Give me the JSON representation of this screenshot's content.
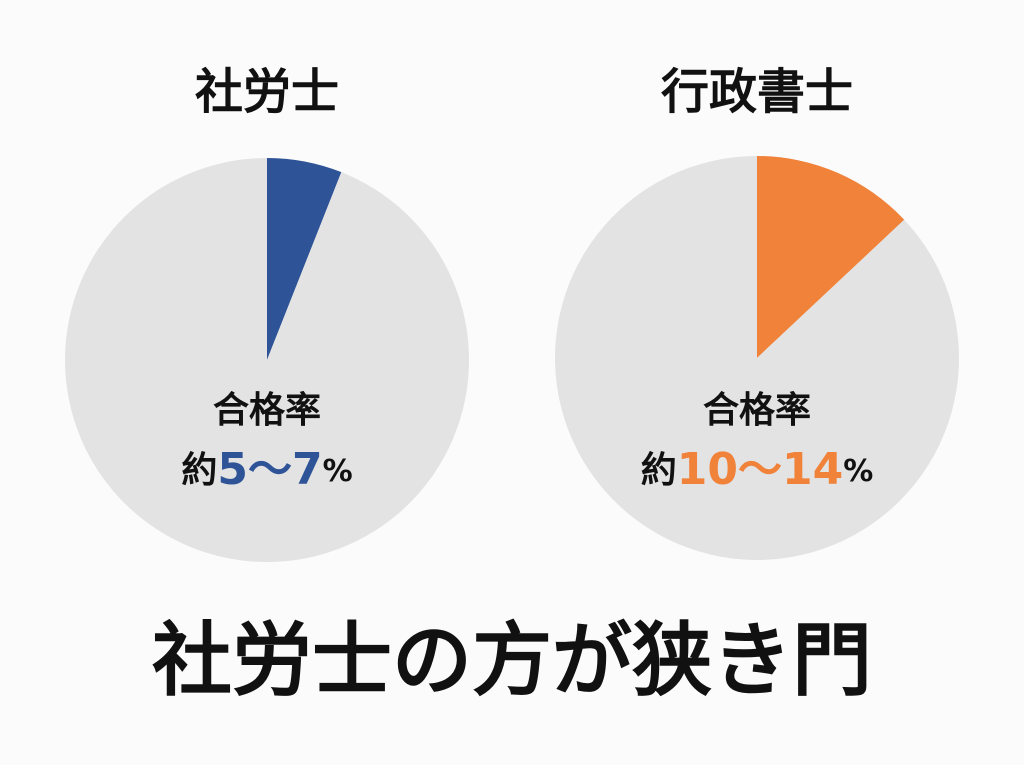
{
  "chart_data": [
    {
      "type": "pie",
      "title": "社労士",
      "values": [
        6,
        94
      ],
      "colors": [
        "#2e5497",
        "#e3e3e3"
      ],
      "label": {
        "heading": "合格率",
        "prefix": "約",
        "range": "5〜7",
        "suffix": "%"
      }
    },
    {
      "type": "pie",
      "title": "行政書士",
      "values": [
        13,
        87
      ],
      "colors": [
        "#f0823a",
        "#e3e3e3"
      ],
      "label": {
        "heading": "合格率",
        "prefix": "約",
        "range": "10〜14",
        "suffix": "%"
      }
    }
  ],
  "caption": "社労士の方が狭き門"
}
